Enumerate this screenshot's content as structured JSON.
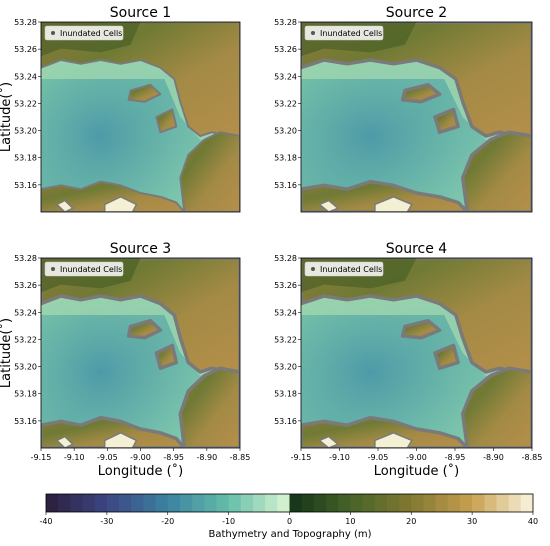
{
  "chart_data": {
    "type": "heatmap",
    "panels": [
      {
        "title": "Source 1",
        "legend": "Inundated Cells"
      },
      {
        "title": "Source 2",
        "legend": "Inundated Cells"
      },
      {
        "title": "Source 3",
        "legend": "Inundated Cells"
      },
      {
        "title": "Source 4",
        "legend": "Inundated Cells"
      }
    ],
    "xlabel": "Longitude (˚)",
    "ylabel": "Latitude(˚)",
    "x_ticks": [
      "-9.15",
      "-9.10",
      "-9.05",
      "-9.00",
      "-8.95",
      "-8.90",
      "-8.85"
    ],
    "y_ticks": [
      "53.28",
      "53.26",
      "53.24",
      "53.22",
      "53.20",
      "53.18",
      "53.16"
    ],
    "xlim": [
      -9.15,
      -8.85
    ],
    "ylim": [
      53.14,
      53.28
    ],
    "colorbar": {
      "label": "Bathymetry and Topography (m)",
      "ticks": [
        "-40",
        "-30",
        "-20",
        "-10",
        "0",
        "10",
        "20",
        "30",
        "40"
      ],
      "range": [
        -40,
        40
      ]
    }
  }
}
